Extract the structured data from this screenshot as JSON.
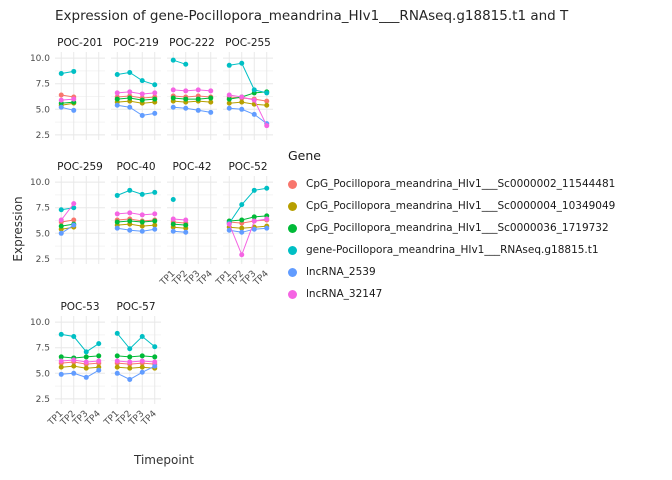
{
  "chart_data": {
    "type": "line",
    "title": "Expression of gene-Pocillopora_meandrina_HIv1___RNAseq.g18815.t1 and T",
    "xlabel": "Timepoint",
    "ylabel": "Expression",
    "x": [
      "TP1",
      "TP2",
      "TP3",
      "TP4"
    ],
    "ylim": [
      2.0,
      10.6
    ],
    "yticks": [
      2.5,
      5.0,
      7.5,
      10.0
    ],
    "yticks_minor": [
      3.75,
      6.25,
      8.75
    ],
    "grid": true,
    "legend": {
      "title": "Gene",
      "position": "right"
    },
    "series": [
      {
        "name": "CpG_Pocillopora_meandrina_HIv1___Sc0000002_11544481",
        "color": "#F8766D"
      },
      {
        "name": "CpG_Pocillopora_meandrina_HIv1___Sc0000004_10349049",
        "color": "#B79F00"
      },
      {
        "name": "CpG_Pocillopora_meandrina_HIv1___Sc0000036_1719732",
        "color": "#00BA38"
      },
      {
        "name": "gene-Pocillopora_meandrina_HIv1___RNAseq.g18815.t1",
        "color": "#00BFC4"
      },
      {
        "name": "lncRNA_2539",
        "color": "#619CFF"
      },
      {
        "name": "lncRNA_32147",
        "color": "#F564E3"
      }
    ],
    "facets": [
      {
        "label": "POC-201",
        "row": 0,
        "col": 0,
        "show_x": false,
        "show_y": true,
        "values": [
          [
            6.4,
            6.2,
            null,
            null
          ],
          [
            5.4,
            5.6,
            null,
            null
          ],
          [
            5.6,
            5.7,
            null,
            null
          ],
          [
            8.5,
            8.7,
            null,
            null
          ],
          [
            5.2,
            4.9,
            null,
            null
          ],
          [
            5.9,
            6.0,
            null,
            null
          ]
        ]
      },
      {
        "label": "POC-219",
        "row": 0,
        "col": 1,
        "show_x": false,
        "show_y": false,
        "values": [
          [
            6.2,
            6.3,
            6.1,
            6.2
          ],
          [
            5.7,
            5.8,
            5.6,
            5.7
          ],
          [
            6.0,
            6.1,
            5.9,
            6.0
          ],
          [
            8.4,
            8.6,
            7.8,
            7.4
          ],
          [
            5.4,
            5.2,
            4.4,
            4.6
          ],
          [
            6.6,
            6.7,
            6.5,
            6.6
          ]
        ]
      },
      {
        "label": "POC-222",
        "row": 0,
        "col": 2,
        "show_x": false,
        "show_y": false,
        "values": [
          [
            6.3,
            6.2,
            6.3,
            6.2
          ],
          [
            5.8,
            5.7,
            5.8,
            5.7
          ],
          [
            6.1,
            6.0,
            6.0,
            6.1
          ],
          [
            9.8,
            9.4,
            null,
            null
          ],
          [
            5.2,
            5.1,
            4.9,
            4.7
          ],
          [
            6.9,
            6.8,
            6.9,
            6.8
          ]
        ]
      },
      {
        "label": "POC-255",
        "row": 0,
        "col": 3,
        "show_x": false,
        "show_y": false,
        "values": [
          [
            6.2,
            6.1,
            6.0,
            5.8
          ],
          [
            5.6,
            5.7,
            5.5,
            5.4
          ],
          [
            6.0,
            6.2,
            6.6,
            6.7
          ],
          [
            9.3,
            9.5,
            6.9,
            6.6
          ],
          [
            5.1,
            5.0,
            4.5,
            3.6
          ],
          [
            6.4,
            6.2,
            5.9,
            3.4
          ]
        ]
      },
      {
        "label": "POC-259",
        "row": 1,
        "col": 0,
        "show_x": false,
        "show_y": true,
        "values": [
          [
            6.1,
            6.3,
            null,
            null
          ],
          [
            5.4,
            5.6,
            null,
            null
          ],
          [
            5.7,
            5.9,
            null,
            null
          ],
          [
            7.3,
            7.5,
            null,
            null
          ],
          [
            5.0,
            5.8,
            null,
            null
          ],
          [
            6.3,
            7.9,
            null,
            null
          ]
        ]
      },
      {
        "label": "POC-40",
        "row": 1,
        "col": 1,
        "show_x": false,
        "show_y": false,
        "values": [
          [
            6.3,
            6.4,
            6.2,
            6.3
          ],
          [
            5.8,
            5.9,
            5.7,
            5.8
          ],
          [
            6.1,
            6.2,
            6.1,
            6.2
          ],
          [
            8.7,
            9.2,
            8.8,
            9.0
          ],
          [
            5.5,
            5.3,
            5.2,
            5.4
          ],
          [
            6.9,
            7.0,
            6.8,
            6.9
          ]
        ]
      },
      {
        "label": "POC-42",
        "row": 1,
        "col": 2,
        "show_x": true,
        "show_y": false,
        "values": [
          [
            6.1,
            6.0,
            null,
            null
          ],
          [
            5.6,
            5.5,
            null,
            null
          ],
          [
            5.9,
            5.8,
            null,
            null
          ],
          [
            8.3,
            null,
            null,
            null
          ],
          [
            5.2,
            5.1,
            null,
            null
          ],
          [
            6.4,
            6.3,
            null,
            null
          ]
        ]
      },
      {
        "label": "POC-52",
        "row": 1,
        "col": 3,
        "show_x": true,
        "show_y": false,
        "values": [
          [
            6.1,
            6.0,
            6.2,
            6.3
          ],
          [
            5.6,
            5.5,
            5.6,
            5.7
          ],
          [
            6.2,
            6.3,
            6.6,
            6.7
          ],
          [
            6.0,
            7.8,
            9.2,
            9.4
          ],
          [
            5.3,
            5.1,
            5.4,
            5.5
          ],
          [
            5.9,
            2.9,
            6.2,
            6.4
          ]
        ]
      },
      {
        "label": "POC-53",
        "row": 2,
        "col": 0,
        "show_x": true,
        "show_y": true,
        "values": [
          [
            6.0,
            6.1,
            5.9,
            6.0
          ],
          [
            5.6,
            5.7,
            5.5,
            5.6
          ],
          [
            6.6,
            6.5,
            6.6,
            6.7
          ],
          [
            8.8,
            8.6,
            7.1,
            7.9
          ],
          [
            4.9,
            5.0,
            4.6,
            5.3
          ],
          [
            6.2,
            6.3,
            6.1,
            6.2
          ]
        ]
      },
      {
        "label": "POC-57",
        "row": 2,
        "col": 1,
        "show_x": true,
        "show_y": false,
        "values": [
          [
            6.0,
            5.9,
            6.0,
            5.9
          ],
          [
            5.6,
            5.5,
            5.6,
            5.5
          ],
          [
            6.7,
            6.6,
            6.7,
            6.6
          ],
          [
            8.9,
            7.4,
            8.6,
            7.6
          ],
          [
            5.0,
            4.4,
            5.1,
            5.7
          ],
          [
            6.2,
            6.1,
            6.2,
            6.1
          ]
        ]
      }
    ]
  }
}
